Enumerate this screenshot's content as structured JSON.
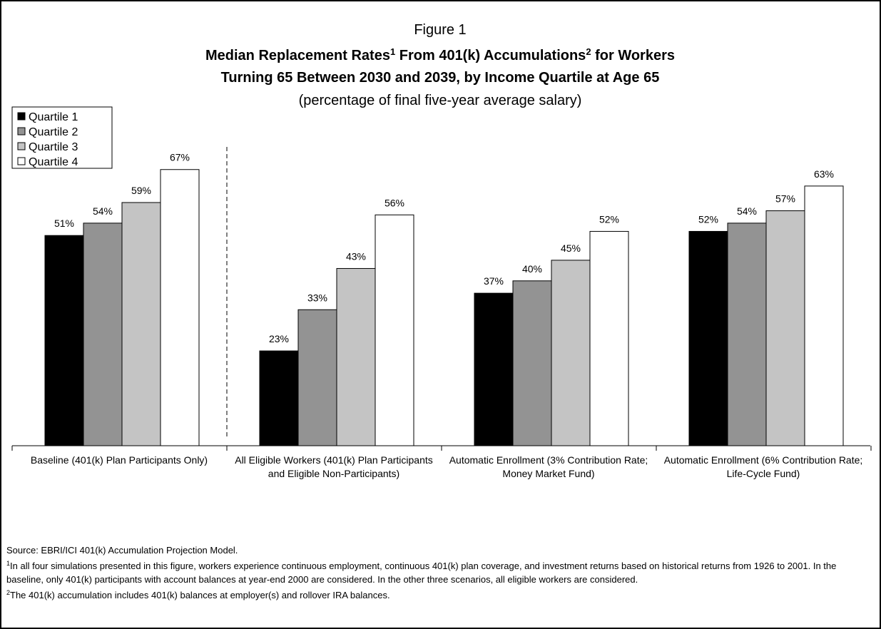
{
  "chart_data": {
    "type": "bar",
    "figure_label": "Figure 1",
    "title_line1": [
      "Median Replacement Rates",
      "1",
      " From 401(k) Accumulations",
      "2",
      " for Workers"
    ],
    "title_line2": "Turning 65 Between 2030 and 2039, by Income Quartile at Age 65",
    "subtitle": "(percentage of final five-year average salary)",
    "categories": [
      "Baseline (401(k) Plan Participants Only)",
      "All Eligible Workers (401(k) Plan Participants and Eligible Non-Participants)",
      "Automatic Enrollment (3% Contribution Rate; Money Market Fund)",
      "Automatic Enrollment (6% Contribution Rate; Life-Cycle Fund)"
    ],
    "series": [
      {
        "name": "Quartile 1",
        "color": "#000000",
        "values": [
          51,
          23,
          37,
          52
        ],
        "value_labels": [
          "51%",
          "23%",
          "37%",
          "52%"
        ]
      },
      {
        "name": "Quartile 2",
        "color": "#939393",
        "values": [
          54,
          33,
          40,
          54
        ],
        "value_labels": [
          "54%",
          "33%",
          "40%",
          "54%"
        ]
      },
      {
        "name": "Quartile 3",
        "color": "#c4c4c4",
        "values": [
          59,
          43,
          45,
          57
        ],
        "value_labels": [
          "59%",
          "43%",
          "45%",
          "57%"
        ]
      },
      {
        "name": "Quartile 4",
        "color": "#ffffff",
        "values": [
          67,
          56,
          52,
          63
        ],
        "value_labels": [
          "67%",
          "56%",
          "52%",
          "63%"
        ]
      }
    ],
    "legend": "top-left",
    "source": "Source: EBRI/ICI 401(k) Accumulation Projection Model.",
    "footnotes": [
      {
        "marker": "1",
        "text": "In all four simulations presented in this figure, workers experience continuous employment, continuous 401(k) plan coverage, and investment returns based on historical returns from 1926 to 2001. In the baseline, only 401(k) participants with account balances at year-end 2000 are considered. In the other three scenarios, all eligible workers are considered."
      },
      {
        "marker": "2",
        "text": "The 401(k) accumulation includes 401(k) balances at employer(s) and rollover IRA balances."
      }
    ]
  }
}
